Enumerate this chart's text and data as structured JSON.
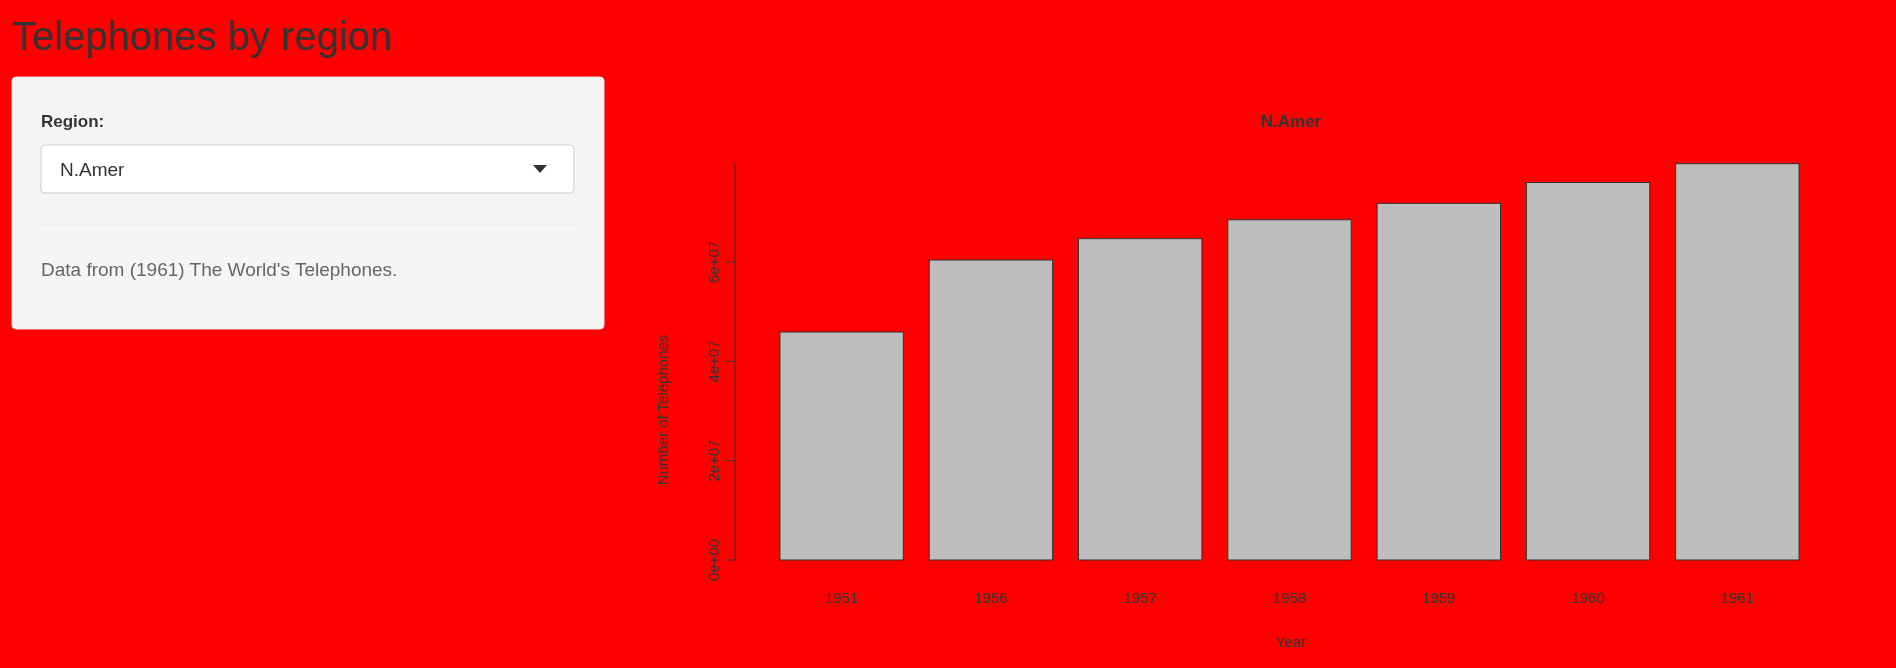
{
  "chart_data": {
    "type": "bar",
    "title": "N.Amer",
    "xlabel": "Year",
    "ylabel": "Number of Telephones",
    "categories": [
      "1951",
      "1956",
      "1957",
      "1958",
      "1959",
      "1960",
      "1961"
    ],
    "values": [
      45900000,
      60400000,
      64700000,
      68500000,
      71800000,
      76000000,
      79800000
    ],
    "color": "#bebebe",
    "ylim": [
      0,
      80000000
    ],
    "yticks": [
      {
        "value": 0,
        "label": "0e+00"
      },
      {
        "value": 20000000,
        "label": "2e+07"
      },
      {
        "value": 40000000,
        "label": "4e+07"
      },
      {
        "value": 60000000,
        "label": "6e+07"
      }
    ],
    "annotations": [
      "Telephones by region",
      "Region:",
      "N.Amer",
      "Data from (1961) The World's Telephones."
    ]
  }
}
